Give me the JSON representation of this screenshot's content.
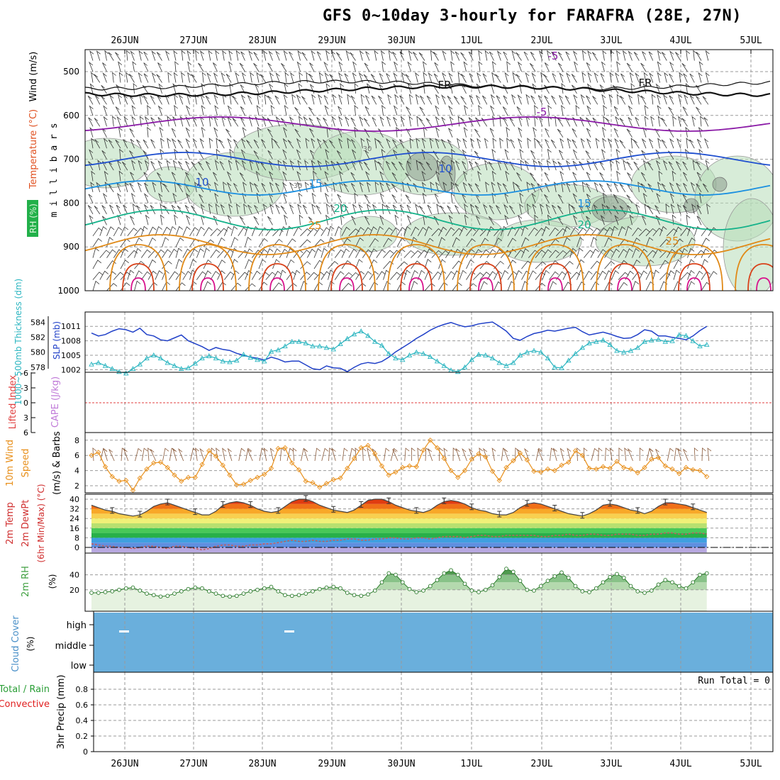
{
  "title": "GFS 0~10day 3-hourly for FARAFRA (28E, 27N)",
  "colors": {
    "grid": "#9a9a9a",
    "rh_fill": "#b7dcb8",
    "wind_temp_purple": "#8a1aa6",
    "t_blue": "#1f4fcf",
    "t_cyan": "#1a8fe0",
    "t_teal": "#14b28a",
    "t_orange": "#e08a18",
    "t_red": "#d9431b",
    "t_magenta": "#d8128c",
    "slp": "#2040c8",
    "thickness": "#2ab5c0",
    "lifted": "#e04040",
    "wind10": "#e8901c",
    "rh2m": "#3fa040",
    "cloud": "#6aafdc",
    "precip_green": "#2a9e36"
  },
  "dates": [
    "26JUN",
    "27JUN",
    "28JUN",
    "29JUN",
    "30JUN",
    "1JUL",
    "2JUL",
    "3JUL",
    "4JUL",
    "5JUL"
  ],
  "panels": {
    "upper_air": {
      "y_label": "m i l l i b a r s",
      "legend": [
        "RH (%)",
        "Temperature (°C)",
        "Wind (m/s)"
      ],
      "pressure_ticks": [
        "500",
        "600",
        "700",
        "800",
        "900",
        "1000"
      ],
      "contour_labels": [
        "-5",
        "-5",
        "10",
        "10",
        "15",
        "15",
        "20",
        "20",
        "25",
        "25",
        "30",
        "30",
        "FR",
        "FR"
      ]
    },
    "slp_thickness": {
      "left_label": "1000~500mb Thickness (dm)",
      "right_label": "SLP (mb)",
      "thickness_ticks": [
        "584",
        "582",
        "580",
        "578"
      ],
      "slp_ticks": [
        "1011",
        "1008",
        "1005",
        "1002"
      ]
    },
    "stability": {
      "left_label": "Lifted Index",
      "right_label": "CAPE (J/kg)",
      "ticks": [
        "-6",
        "-3",
        "0",
        "3",
        "6"
      ]
    },
    "wind10m": {
      "label_a": "10m Wind",
      "label_b": "Speed",
      "label_c": "(m/s) & Barbs",
      "ticks": [
        "8",
        "6",
        "4",
        "2"
      ]
    },
    "temp2m": {
      "label_a": "2m Temp",
      "label_b": "2m DewPt",
      "label_c": "(6hr Min/Max) (°C)",
      "ticks": [
        "40",
        "32",
        "24",
        "16",
        "8",
        "0"
      ]
    },
    "rh2m": {
      "label_a": "2m RH",
      "label_b": "(%)",
      "ticks": [
        "40",
        "20"
      ]
    },
    "cloud": {
      "label_a": "Cloud Cover",
      "label_b": "(%)",
      "levels": [
        "high",
        "middle",
        "low"
      ]
    },
    "precip": {
      "label_a": "Total / Rain",
      "label_b": "Convective",
      "label_c": "3hr Precip (mm)",
      "run_total": "Run Total = 0",
      "ticks": [
        "0.8",
        "0.6",
        "0.4",
        "0.2",
        "0"
      ]
    }
  },
  "chart_data": [
    {
      "type": "line",
      "title": "SLP / 1000-500mb Thickness",
      "x_unit": "3-hourly steps from 25JUN 12Z",
      "series": [
        {
          "name": "SLP (mb)",
          "values": [
            1009.6,
            1009.0,
            1009.3,
            1010.0,
            1010.5,
            1010.3,
            1009.8,
            1010.6,
            1009.3,
            1009.0,
            1008.2,
            1008.0,
            1008.6,
            1009.2,
            1008.0,
            1007.4,
            1006.8,
            1006.0,
            1006.6,
            1006.2,
            1006.0,
            1005.4,
            1005.0,
            1004.6,
            1004.4,
            1004.0,
            1004.6,
            1004.2,
            1003.6,
            1003.8,
            1003.8,
            1003.0,
            1002.2,
            1002.0,
            1002.8,
            1002.4,
            1002.3,
            1001.6,
            1002.5,
            1003.2,
            1003.5,
            1003.3,
            1003.7,
            1004.6,
            1005.7,
            1006.6,
            1007.5,
            1008.5,
            1009.3,
            1010.2,
            1010.9,
            1011.4,
            1011.8,
            1011.3,
            1010.9,
            1011.1,
            1011.5,
            1011.7,
            1011.9,
            1011.0,
            1010.0,
            1008.5,
            1008.1,
            1008.9,
            1009.5,
            1009.8,
            1010.2,
            1010.0,
            1010.3,
            1010.6,
            1010.8,
            1009.9,
            1009.2,
            1009.5,
            1009.8,
            1009.4,
            1008.9,
            1008.5,
            1008.6,
            1009.3,
            1010.3,
            1010.0,
            1009.0,
            1009.0,
            1008.7,
            1008.5,
            1008.2,
            1009.0,
            1010.1,
            1011.0
          ]
        },
        {
          "name": "1000-500mb Thickness (dm)",
          "values": [
            578.4,
            578.6,
            578.2,
            577.8,
            577.4,
            577.2,
            577.8,
            578.4,
            579.2,
            579.6,
            579.2,
            578.6,
            578.2,
            577.8,
            577.9,
            578.5,
            579.2,
            579.5,
            579.2,
            578.8,
            578.7,
            578.9,
            579.7,
            579.3,
            579.0,
            578.8,
            580.1,
            580.3,
            580.8,
            581.4,
            581.4,
            581.2,
            580.8,
            580.8,
            580.6,
            580.4,
            581.1,
            581.8,
            582.4,
            582.8,
            582.2,
            581.4,
            580.9,
            579.8,
            579.2,
            579.0,
            579.6,
            580.0,
            579.8,
            579.4,
            578.8,
            578.2,
            577.6,
            577.4,
            578.0,
            579.0,
            579.7,
            579.6,
            579.2,
            578.6,
            578.2,
            578.6,
            579.6,
            580.0,
            580.2,
            580.0,
            579.2,
            578.0,
            577.9,
            578.9,
            579.8,
            580.6,
            581.2,
            581.4,
            581.6,
            581.0,
            580.2,
            580.0,
            580.2,
            580.6,
            581.4,
            581.6,
            581.7,
            581.4,
            581.5,
            582.3,
            582.2,
            581.5,
            580.8,
            581.0
          ]
        }
      ]
    },
    {
      "type": "line",
      "title": "10m Wind Speed (m/s)",
      "series": [
        {
          "name": "10m Wind Speed",
          "values": [
            6.0,
            6.4,
            4.5,
            3.2,
            2.6,
            2.7,
            1.4,
            3.0,
            4.2,
            5.0,
            5.1,
            4.4,
            3.4,
            2.6,
            3.1,
            3.1,
            4.8,
            6.6,
            5.9,
            4.7,
            3.4,
            2.1,
            2.2,
            2.7,
            3.1,
            3.5,
            4.3,
            6.9,
            7.0,
            5.0,
            4.1,
            2.6,
            2.4,
            1.8,
            2.3,
            2.8,
            3.0,
            4.3,
            5.6,
            7.0,
            7.3,
            6.2,
            4.6,
            3.4,
            3.8,
            4.4,
            4.6,
            4.5,
            6.7,
            8.0,
            7.0,
            5.6,
            4.0,
            3.1,
            4.0,
            5.5,
            6.2,
            5.8,
            3.9,
            2.7,
            4.4,
            5.3,
            6.3,
            5.4,
            3.9,
            3.8,
            4.2,
            4.0,
            4.7,
            5.1,
            6.6,
            6.0,
            4.3,
            4.2,
            4.5,
            4.3,
            5.2,
            4.4,
            4.2,
            3.7,
            4.4,
            5.5,
            5.7,
            4.6,
            4.2,
            3.6,
            4.4,
            4.1,
            4.0,
            3.2
          ]
        }
      ]
    },
    {
      "type": "area",
      "title": "2m Temp (°C)",
      "series": [
        {
          "name": "2m Temp",
          "values": [
            35,
            33,
            31,
            30,
            28,
            27,
            26,
            27,
            30,
            34,
            36,
            37,
            35,
            33,
            31,
            29,
            27,
            27,
            30,
            35,
            37,
            38,
            37,
            35,
            32,
            30,
            29,
            30,
            34,
            38,
            40,
            40,
            38,
            35,
            33,
            31,
            30,
            29,
            31,
            35,
            39,
            40,
            40,
            38,
            35,
            33,
            31,
            30,
            29,
            31,
            35,
            38,
            39,
            38,
            36,
            33,
            31,
            30,
            28,
            27,
            27,
            29,
            33,
            36,
            37,
            36,
            34,
            32,
            30,
            28,
            27,
            26,
            28,
            31,
            35,
            36,
            35,
            33,
            31,
            30,
            28,
            30,
            34,
            37,
            37,
            36,
            35,
            33,
            31,
            29
          ]
        },
        {
          "name": "2m DewPt",
          "values": [
            3,
            2,
            1,
            1,
            0,
            0,
            -1,
            0,
            1,
            1,
            0,
            -1,
            1,
            1,
            0,
            -1,
            -2,
            -1,
            1,
            2,
            2,
            1,
            1,
            2,
            2,
            3,
            3,
            4,
            5,
            6,
            5,
            5,
            6,
            5,
            5,
            6,
            6,
            7,
            7,
            6,
            6,
            7,
            7,
            8,
            8,
            7,
            7,
            8,
            8,
            7,
            8,
            9,
            9,
            9,
            8,
            9,
            10,
            10,
            9,
            9,
            10,
            10,
            10,
            10,
            10,
            9,
            9,
            10,
            10,
            11,
            10,
            10,
            11,
            11,
            10,
            10,
            11,
            11,
            11,
            10,
            10,
            11,
            11,
            12,
            12,
            11,
            11,
            12,
            12,
            11
          ]
        }
      ]
    },
    {
      "type": "area",
      "title": "2m RH (%)",
      "series": [
        {
          "name": "2m RH",
          "values": [
            16,
            16,
            17,
            18,
            20,
            22,
            23,
            19,
            15,
            13,
            11,
            12,
            15,
            18,
            21,
            23,
            22,
            18,
            15,
            12,
            11,
            12,
            15,
            18,
            20,
            22,
            24,
            18,
            13,
            12,
            13,
            15,
            18,
            21,
            23,
            24,
            22,
            16,
            13,
            12,
            14,
            19,
            30,
            42,
            40,
            30,
            21,
            17,
            19,
            25,
            33,
            42,
            46,
            40,
            28,
            19,
            17,
            20,
            26,
            37,
            48,
            44,
            32,
            20,
            19,
            25,
            32,
            38,
            43,
            36,
            25,
            18,
            17,
            22,
            30,
            37,
            41,
            36,
            25,
            18,
            16,
            19,
            27,
            33,
            30,
            25,
            22,
            30,
            40,
            42
          ]
        }
      ]
    },
    {
      "type": "bar",
      "title": "3hr Precip (mm)",
      "categories": [
        "26JUN",
        "27JUN",
        "28JUN",
        "29JUN",
        "30JUN",
        "1JUL",
        "2JUL",
        "3JUL",
        "4JUL",
        "5JUL"
      ],
      "values": [
        0,
        0,
        0,
        0,
        0,
        0,
        0,
        0,
        0,
        0
      ],
      "ylim": [
        0,
        1.0
      ]
    }
  ]
}
